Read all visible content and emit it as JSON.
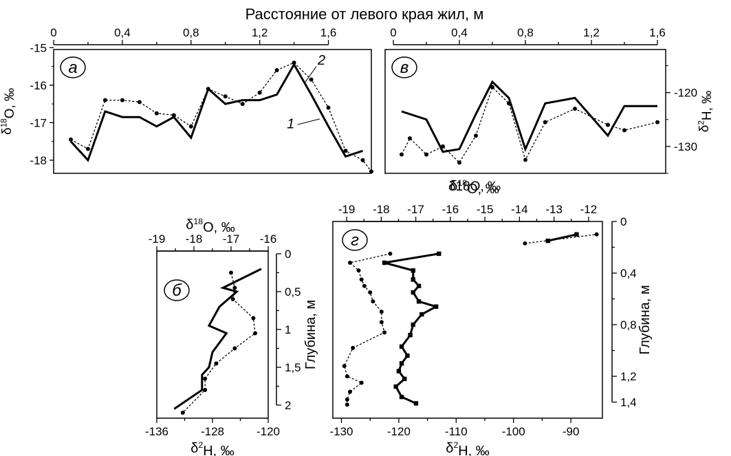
{
  "figure": {
    "top_axis_title": "Расстояние от левого края жил, м",
    "middle_axis_title": "δ18O, ‰"
  },
  "chart_data": [
    {
      "panel": "а",
      "type": "line",
      "x_ticks": [
        "0",
        "0,4",
        "0,8",
        "1,2",
        "1,6"
      ],
      "xlim": [
        0,
        1.85
      ],
      "y_label": "δ18O, ‰",
      "y_ticks": [
        "-15",
        "-16",
        "-17",
        "-18"
      ],
      "ylim": [
        -18.35,
        -15.05
      ],
      "curve_labels": [
        "1",
        "2"
      ],
      "series": [
        {
          "name": "1",
          "style": "solid",
          "x": [
            0.1,
            0.2,
            0.3,
            0.4,
            0.5,
            0.6,
            0.7,
            0.8,
            0.9,
            1.0,
            1.1,
            1.2,
            1.3,
            1.4,
            1.5,
            1.6,
            1.7,
            1.8
          ],
          "y": [
            -17.5,
            -18.0,
            -16.7,
            -16.85,
            -16.85,
            -17.1,
            -16.85,
            -17.4,
            -16.1,
            -16.5,
            -16.4,
            -16.4,
            -16.25,
            -15.45,
            -16.25,
            -17.1,
            -17.9,
            -17.75
          ]
        },
        {
          "name": "2",
          "style": "dotted",
          "x": [
            0.1,
            0.2,
            0.3,
            0.4,
            0.5,
            0.6,
            0.7,
            0.8,
            0.9,
            1.0,
            1.1,
            1.2,
            1.3,
            1.4,
            1.5,
            1.6,
            1.7,
            1.8,
            1.85
          ],
          "y": [
            -17.45,
            -17.7,
            -16.4,
            -16.4,
            -16.45,
            -16.75,
            -16.8,
            -17.1,
            -16.1,
            -16.3,
            -16.5,
            -16.2,
            -15.6,
            -15.4,
            -15.85,
            -16.6,
            -17.75,
            -18.0,
            -18.3
          ]
        }
      ]
    },
    {
      "panel": "в",
      "type": "line",
      "x_ticks": [
        "0",
        "0,4",
        "0,8",
        "1,2",
        "1,6"
      ],
      "xlim": [
        -0.05,
        1.65
      ],
      "y_label": "δ2H, ‰",
      "y_ticks": [
        "-120",
        "-130"
      ],
      "ylim": [
        -135,
        -112
      ],
      "series": [
        {
          "name": "1",
          "style": "solid",
          "x": [
            0.05,
            0.2,
            0.3,
            0.4,
            0.5,
            0.6,
            0.7,
            0.8,
            0.92,
            1.1,
            1.3,
            1.4,
            1.6
          ],
          "y": [
            -123.5,
            -125.0,
            -131.0,
            -130.5,
            -124.0,
            -118.0,
            -121.0,
            -130.5,
            -122.0,
            -121.0,
            -128.0,
            -122.5,
            -122.5
          ]
        },
        {
          "name": "2",
          "style": "dotted",
          "x": [
            0.05,
            0.1,
            0.2,
            0.3,
            0.4,
            0.5,
            0.6,
            0.7,
            0.8,
            0.92,
            1.1,
            1.3,
            1.4,
            1.6
          ],
          "y": [
            -131.5,
            -128.5,
            -131.5,
            -130.0,
            -133.0,
            -128.0,
            -119.0,
            -122.0,
            -132.5,
            -125.5,
            -123.0,
            -126.0,
            -127.0,
            -125.5
          ]
        }
      ]
    },
    {
      "panel": "б",
      "type": "line",
      "top_axis_label": "δ18O, ‰",
      "top_ticks": [
        "-19",
        "-18",
        "-17",
        "-16"
      ],
      "top_lim": [
        -19,
        -16
      ],
      "bottom_axis_label": "δ2H, ‰",
      "bottom_ticks": [
        "-136",
        "-128",
        "-120"
      ],
      "bottom_lim": [
        -136,
        -120
      ],
      "right_axis_label": "Глубина, м",
      "depth_ticks": [
        "0",
        "0,5",
        "1",
        "1,5",
        "2"
      ],
      "depth_lim": [
        0,
        2.1
      ],
      "series": [
        {
          "name": "1",
          "style": "solid",
          "axis": "bottom",
          "values": [
            -121.0,
            -126.5,
            -124.5,
            -127.0,
            -128.5,
            -126.0,
            -128.0,
            -128.5,
            -129.5,
            -129.5,
            -133.5
          ],
          "depth": [
            0.2,
            0.45,
            0.5,
            0.7,
            0.95,
            1.05,
            1.3,
            1.5,
            1.6,
            1.8,
            2.05
          ]
        },
        {
          "name": "2",
          "style": "dotted",
          "axis": "top",
          "values": [
            -17.0,
            -16.9,
            -16.95,
            -16.4,
            -16.35,
            -16.9,
            -17.4,
            -17.7,
            -17.7,
            -18.3
          ],
          "depth": [
            0.25,
            0.45,
            0.6,
            0.85,
            1.05,
            1.25,
            1.45,
            1.65,
            1.8,
            2.1
          ]
        }
      ]
    },
    {
      "panel": "г",
      "type": "line",
      "top_axis_label": "δ18O, ‰",
      "top_ticks": [
        "-19",
        "-18",
        "-17",
        "-16",
        "-15",
        "-14",
        "-13",
        "-12"
      ],
      "top_lim": [
        -19.4,
        -11.6
      ],
      "bottom_axis_label": "δ2H, ‰",
      "bottom_ticks": [
        "-130",
        "-120",
        "-110",
        "-100",
        "-90"
      ],
      "bottom_lim": [
        -131.5,
        -84.5
      ],
      "right_axis_label": "Глубина, м",
      "depth_ticks": [
        "0",
        "0,4",
        "0,8",
        "1,2",
        "1,4"
      ],
      "depth_lim": [
        0,
        1.45
      ],
      "series": [
        {
          "name": "1",
          "style": "solid",
          "marker": "square",
          "axis": "bottom",
          "segments": [
            {
              "values": [
                -94.0,
                -89.0
              ],
              "depth": [
                0.15,
                0.1
              ]
            },
            {
              "values": [
                -113.0,
                -122.5,
                -117.5,
                -117.5,
                -116.5,
                -117.5,
                -116.5,
                -113.5,
                -116.0,
                -117.5,
                -118.0,
                -119.5,
                -118.5,
                -119.5,
                -120.0,
                -119.0,
                -120.5,
                -119.5,
                -117.0
              ],
              "depth": [
                0.25,
                0.32,
                0.38,
                0.45,
                0.5,
                0.55,
                0.62,
                0.66,
                0.72,
                0.8,
                0.88,
                0.97,
                1.04,
                1.1,
                1.16,
                1.22,
                1.28,
                1.36,
                1.41
              ]
            }
          ]
        },
        {
          "name": "2",
          "style": "dotted",
          "marker": "circle",
          "axis": "bottom",
          "segments": [
            {
              "values": [
                -98.0,
                -85.5
              ],
              "depth": [
                0.17,
                0.1
              ]
            },
            {
              "values": [
                -121.5,
                -128.5,
                -127.0,
                -126.5,
                -126.0,
                -125.0,
                -124.5,
                -123.0,
                -123.0,
                -122.5,
                -128.0,
                -129.5,
                -129.0,
                -126.5,
                -128.5,
                -129.0,
                -129.0
              ],
              "depth": [
                0.25,
                0.32,
                0.38,
                0.45,
                0.5,
                0.55,
                0.62,
                0.7,
                0.78,
                0.86,
                0.98,
                1.12,
                1.2,
                1.25,
                1.32,
                1.38,
                1.42
              ]
            }
          ]
        }
      ]
    }
  ]
}
